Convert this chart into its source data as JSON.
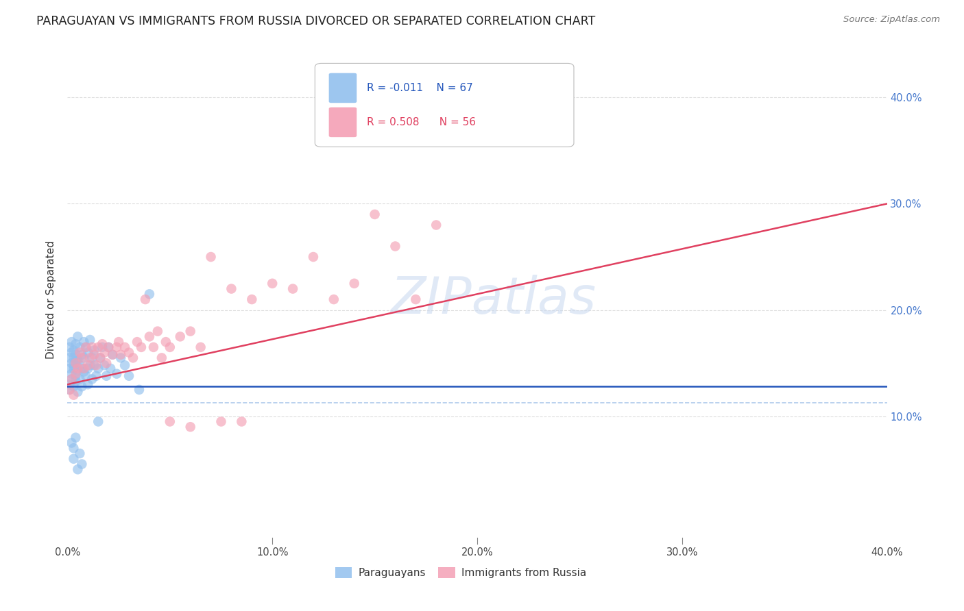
{
  "title": "PARAGUAYAN VS IMMIGRANTS FROM RUSSIA DIVORCED OR SEPARATED CORRELATION CHART",
  "source": "Source: ZipAtlas.com",
  "ylabel": "Divorced or Separated",
  "ytick_labels": [
    "10.0%",
    "20.0%",
    "30.0%",
    "40.0%"
  ],
  "ytick_values": [
    0.1,
    0.2,
    0.3,
    0.4
  ],
  "xlim": [
    0.0,
    0.4
  ],
  "ylim": [
    -0.02,
    0.44
  ],
  "blue_color": "#92C0EE",
  "pink_color": "#F4A0B5",
  "line_blue_color": "#2255BB",
  "line_pink_color": "#E04060",
  "dashed_line_color": "#A0C0E8",
  "watermark": "ZIPatlas",
  "blue_scatter_x": [
    0.001,
    0.001,
    0.001,
    0.001,
    0.001,
    0.002,
    0.002,
    0.002,
    0.002,
    0.002,
    0.003,
    0.003,
    0.003,
    0.003,
    0.003,
    0.004,
    0.004,
    0.004,
    0.004,
    0.004,
    0.005,
    0.005,
    0.005,
    0.005,
    0.006,
    0.006,
    0.006,
    0.007,
    0.007,
    0.007,
    0.008,
    0.008,
    0.008,
    0.009,
    0.009,
    0.01,
    0.01,
    0.01,
    0.011,
    0.011,
    0.012,
    0.012,
    0.013,
    0.013,
    0.014,
    0.015,
    0.016,
    0.017,
    0.018,
    0.019,
    0.02,
    0.021,
    0.022,
    0.024,
    0.026,
    0.028,
    0.03,
    0.035,
    0.04,
    0.015,
    0.003,
    0.004,
    0.005,
    0.006,
    0.002,
    0.003,
    0.007
  ],
  "blue_scatter_y": [
    0.13,
    0.145,
    0.125,
    0.155,
    0.165,
    0.14,
    0.15,
    0.135,
    0.16,
    0.17,
    0.145,
    0.155,
    0.128,
    0.148,
    0.162,
    0.133,
    0.152,
    0.138,
    0.158,
    0.168,
    0.143,
    0.153,
    0.123,
    0.175,
    0.148,
    0.135,
    0.165,
    0.145,
    0.128,
    0.158,
    0.155,
    0.142,
    0.17,
    0.138,
    0.165,
    0.145,
    0.13,
    0.16,
    0.148,
    0.172,
    0.135,
    0.155,
    0.148,
    0.162,
    0.138,
    0.145,
    0.155,
    0.165,
    0.148,
    0.138,
    0.165,
    0.145,
    0.158,
    0.14,
    0.155,
    0.148,
    0.138,
    0.125,
    0.215,
    0.095,
    0.07,
    0.08,
    0.05,
    0.065,
    0.075,
    0.06,
    0.055
  ],
  "pink_scatter_x": [
    0.001,
    0.002,
    0.003,
    0.004,
    0.004,
    0.005,
    0.006,
    0.007,
    0.008,
    0.009,
    0.01,
    0.011,
    0.012,
    0.013,
    0.014,
    0.015,
    0.016,
    0.017,
    0.018,
    0.019,
    0.02,
    0.022,
    0.024,
    0.025,
    0.026,
    0.028,
    0.03,
    0.032,
    0.034,
    0.036,
    0.038,
    0.04,
    0.042,
    0.044,
    0.046,
    0.048,
    0.05,
    0.055,
    0.06,
    0.065,
    0.07,
    0.08,
    0.09,
    0.1,
    0.11,
    0.12,
    0.13,
    0.14,
    0.15,
    0.16,
    0.17,
    0.18,
    0.05,
    0.06,
    0.075,
    0.085
  ],
  "pink_scatter_y": [
    0.125,
    0.135,
    0.12,
    0.14,
    0.15,
    0.145,
    0.16,
    0.155,
    0.145,
    0.165,
    0.148,
    0.155,
    0.165,
    0.158,
    0.148,
    0.165,
    0.155,
    0.168,
    0.16,
    0.15,
    0.165,
    0.158,
    0.165,
    0.17,
    0.158,
    0.165,
    0.16,
    0.155,
    0.17,
    0.165,
    0.21,
    0.175,
    0.165,
    0.18,
    0.155,
    0.17,
    0.165,
    0.175,
    0.18,
    0.165,
    0.25,
    0.22,
    0.21,
    0.225,
    0.22,
    0.25,
    0.21,
    0.225,
    0.29,
    0.26,
    0.21,
    0.28,
    0.095,
    0.09,
    0.095,
    0.095
  ],
  "blue_line_x0": 0.0,
  "blue_line_x1": 0.4,
  "blue_line_y0": 0.128,
  "blue_line_y1": 0.128,
  "pink_line_x0": 0.0,
  "pink_line_x1": 0.4,
  "pink_line_y0": 0.13,
  "pink_line_y1": 0.3,
  "dashed_line_y": 0.113,
  "grid_color": "#DDDDDD"
}
